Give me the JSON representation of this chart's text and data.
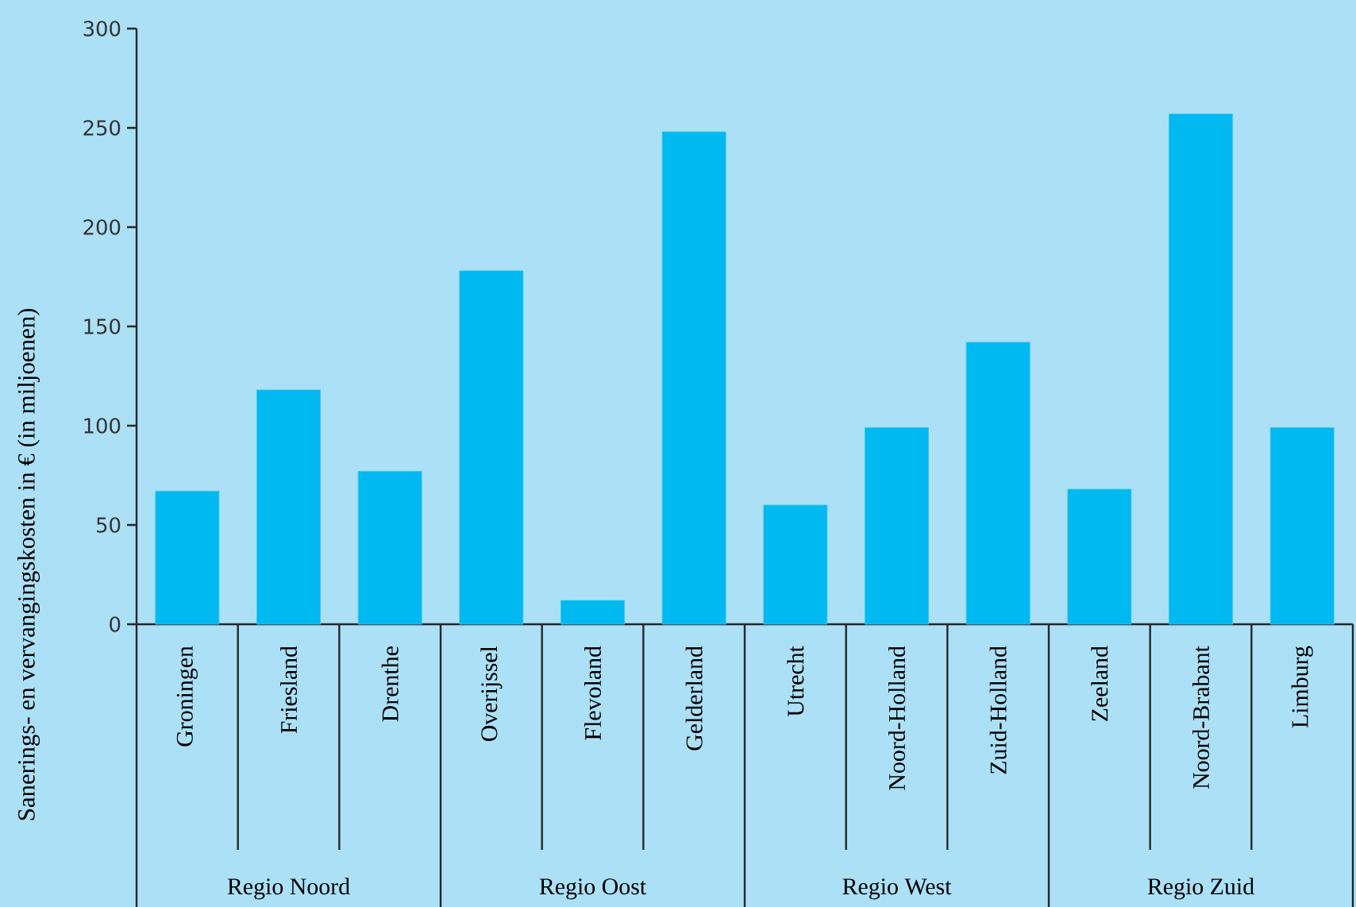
{
  "chart_data": {
    "type": "bar",
    "ylabel": "Sanerings- en vervangingskosten in € (in miljoenen)",
    "categories": [
      "Groningen",
      "Friesland",
      "Drenthe",
      "Overijssel",
      "Flevoland",
      "Gelderland",
      "Utrecht",
      "Noord-Holland",
      "Zuid-Holland",
      "Zeeland",
      "Noord-Brabant",
      "Limburg"
    ],
    "values": [
      67,
      118,
      77,
      178,
      12,
      248,
      60,
      99,
      142,
      68,
      257,
      99
    ],
    "color": "#00b9f0",
    "ylim": [
      0,
      300
    ],
    "yticks": [
      0,
      50,
      100,
      150,
      200,
      250,
      300
    ],
    "annotations": [
      "Regio Noord",
      "Regio Oost",
      "Regio West",
      "Regio Zuid"
    ]
  }
}
